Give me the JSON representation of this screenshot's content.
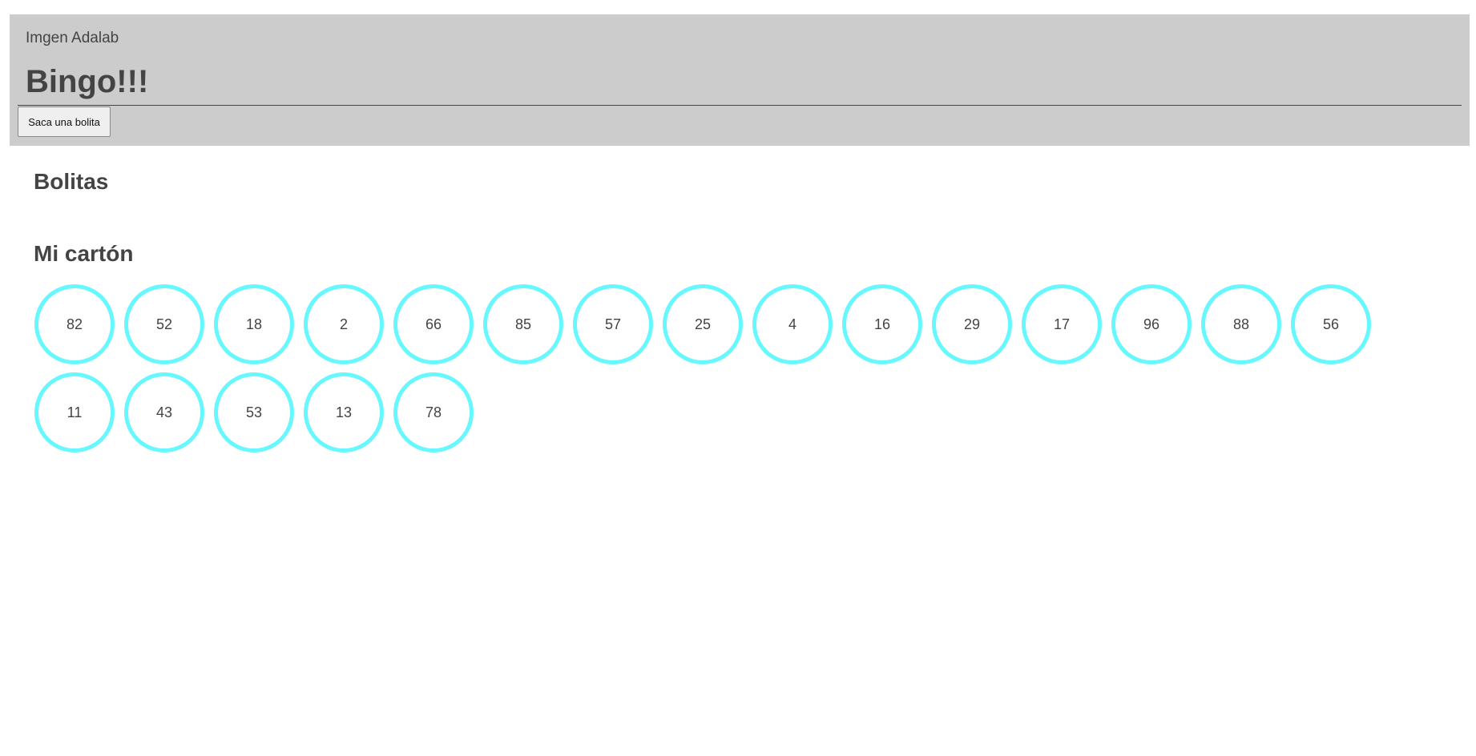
{
  "header": {
    "logo_text": "Imgen Adalab",
    "title": "Bingo!!!",
    "draw_button_label": "Saca una bolita"
  },
  "balls_section": {
    "title": "Bolitas",
    "drawn": []
  },
  "card_section": {
    "title": "Mi cartón",
    "numbers": [
      "82",
      "52",
      "18",
      "2",
      "66",
      "85",
      "57",
      "25",
      "4",
      "16",
      "29",
      "17",
      "96",
      "88",
      "56",
      "11",
      "43",
      "53",
      "13",
      "78"
    ]
  },
  "colors": {
    "header_bg": "#cccccc",
    "ball_border": "#66f7ff",
    "text": "#444444"
  }
}
